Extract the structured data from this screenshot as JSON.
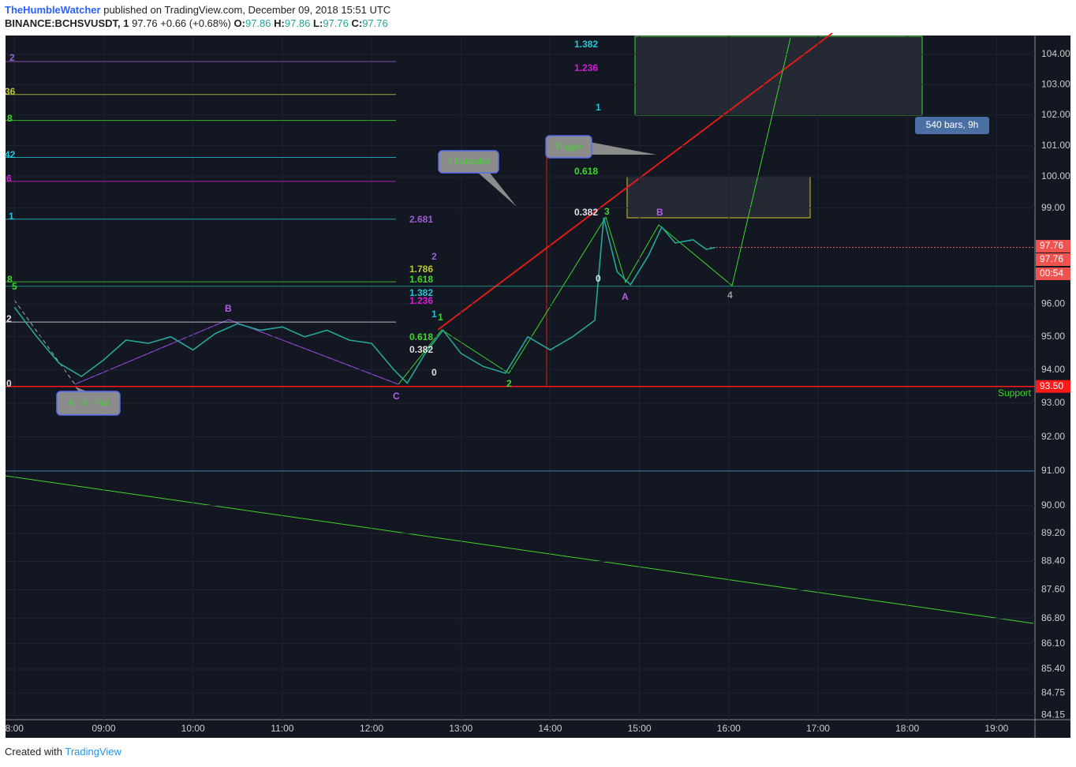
{
  "header": {
    "author": "TheHumbleWatcher",
    "published": "published on TradingView.com, December 09, 2018 15:51 UTC",
    "symbol": "BINANCE:BCHSVUSDT, 1",
    "last": "97.76",
    "change": "+0.66 (+0.68%)",
    "o_label": "O:",
    "o": "97.86",
    "h_label": "H:",
    "h": "97.86",
    "l_label": "L:",
    "l": "97.76",
    "c_label": "C:",
    "c": "97.76"
  },
  "footer": {
    "created": "Created with",
    "brand": "TradingView"
  },
  "chart_data": {
    "type": "line",
    "log_scale": true,
    "color": "#26a69a",
    "x": [
      8.0,
      8.25,
      8.5,
      8.75,
      9.0,
      9.25,
      9.5,
      9.75,
      10.0,
      10.25,
      10.5,
      10.75,
      11.0,
      11.25,
      11.5,
      11.75,
      12.0,
      12.25,
      12.4,
      12.6,
      12.8,
      13.0,
      13.25,
      13.5,
      13.75,
      14.0,
      14.25,
      14.5,
      14.6,
      14.75,
      14.9,
      15.1,
      15.25,
      15.4,
      15.6,
      15.75,
      15.85
    ],
    "values": [
      95.9,
      95.0,
      94.2,
      93.8,
      94.3,
      94.9,
      94.8,
      95.0,
      94.6,
      95.1,
      95.4,
      95.2,
      95.3,
      95.0,
      95.2,
      94.9,
      94.8,
      94.0,
      93.6,
      94.5,
      95.2,
      94.5,
      94.1,
      93.9,
      95.0,
      94.6,
      95.0,
      95.5,
      98.7,
      97.0,
      96.6,
      97.5,
      98.4,
      97.9,
      98.0,
      97.7,
      97.76
    ],
    "xlim": [
      7.9,
      19.43
    ],
    "xticks": [
      {
        "value": 8,
        "label": "8:00"
      },
      {
        "value": 9,
        "label": "09:00"
      },
      {
        "value": 10,
        "label": "10:00"
      },
      {
        "value": 11,
        "label": "11:00"
      },
      {
        "value": 12,
        "label": "12:00"
      },
      {
        "value": 13,
        "label": "13:00"
      },
      {
        "value": 14,
        "label": "14:00"
      },
      {
        "value": 15,
        "label": "15:00"
      },
      {
        "value": 16,
        "label": "16:00"
      },
      {
        "value": 17,
        "label": "17:00"
      },
      {
        "value": 18,
        "label": "18:00"
      },
      {
        "value": 19,
        "label": "19:00"
      }
    ],
    "ylim": [
      84.03,
      104.63
    ],
    "yticks": [
      {
        "value": 104,
        "label": "104.00"
      },
      {
        "value": 103,
        "label": "103.00"
      },
      {
        "value": 102,
        "label": "102.00"
      },
      {
        "value": 101,
        "label": "101.00"
      },
      {
        "value": 100,
        "label": "100.00"
      },
      {
        "value": 99,
        "label": "99.00"
      },
      {
        "value": 96,
        "label": "96.00"
      },
      {
        "value": 95,
        "label": "95.00"
      },
      {
        "value": 94,
        "label": "94.00"
      },
      {
        "value": 93,
        "label": "93.00"
      },
      {
        "value": 92,
        "label": "92.00"
      },
      {
        "value": 91,
        "label": "91.00"
      },
      {
        "value": 90,
        "label": "90.00"
      },
      {
        "value": 89.2,
        "label": "89.20"
      },
      {
        "value": 88.4,
        "label": "88.40"
      },
      {
        "value": 87.6,
        "label": "87.60"
      },
      {
        "value": 86.8,
        "label": "86.80"
      },
      {
        "value": 86.1,
        "label": "86.10"
      },
      {
        "value": 85.4,
        "label": "85.40"
      },
      {
        "value": 84.75,
        "label": "84.75"
      },
      {
        "value": 84.15,
        "label": "84.15"
      }
    ],
    "grid": true,
    "levels": [
      {
        "value": 103.76,
        "color": "#9b5ed4"
      },
      {
        "value": 102.67,
        "color": "#c0ca33"
      },
      {
        "value": 101.82,
        "color": "#3fd62b"
      },
      {
        "value": 100.62,
        "color": "#26c6da"
      },
      {
        "value": 99.85,
        "color": "#d81bd8"
      },
      {
        "value": 98.65,
        "color": "#26c6da"
      },
      {
        "value": 96.69,
        "color": "#3fd62b"
      },
      {
        "value": 95.45,
        "color": "#e0e0e0"
      },
      {
        "value": 96.55,
        "color": "#26a69a"
      },
      {
        "value": 91.0,
        "color": "#4a90c2"
      }
    ],
    "support": {
      "value": 93.5,
      "label": "93.50",
      "text": "Support",
      "color": "#ff1a1a"
    },
    "price_tags": [
      {
        "value": 97.76,
        "label": "97.76"
      },
      {
        "value": 97.55,
        "label": "97.76"
      },
      {
        "value": 97.2,
        "label": "00:54"
      }
    ],
    "range_info": "540 bars, 9h",
    "annotations": [
      {
        "text": "1.382",
        "color": "#26c6da"
      },
      {
        "text": "1.236",
        "color": "#d81bd8"
      },
      {
        "text": "1",
        "color": "#26c6da"
      },
      {
        "text": "0.618",
        "color": "#3fd62b"
      },
      {
        "text": "0.382",
        "color": "#e0e0e0"
      },
      {
        "text": "3",
        "color": "#3fd62b"
      },
      {
        "text": "B",
        "color": "#b45ee8"
      },
      {
        "text": "0",
        "color": "#e0e0e0"
      },
      {
        "text": "A",
        "color": "#b45ee8"
      },
      {
        "text": "4",
        "color": "#9e9e9e"
      },
      {
        "text": "2.681",
        "color": "#9b5ed4"
      },
      {
        "text": "2",
        "color": "#9b5ed4"
      },
      {
        "text": "1.786",
        "color": "#c0ca33"
      },
      {
        "text": "1.618",
        "color": "#3fd62b"
      },
      {
        "text": "1.382",
        "color": "#26c6da"
      },
      {
        "text": "1.236",
        "color": "#d81bd8"
      },
      {
        "text": "1",
        "color": "#26c6da"
      },
      {
        "text": "1",
        "color": "#3fd62b"
      },
      {
        "text": "0.618",
        "color": "#3fd62b"
      },
      {
        "text": "0.382",
        "color": "#e0e0e0"
      },
      {
        "text": "0",
        "color": "#e0e0e0"
      },
      {
        "text": "2",
        "color": "#3fd62b"
      },
      {
        "text": "C",
        "color": "#b45ee8"
      },
      {
        "text": "B",
        "color": "#b45ee8"
      },
      {
        "text": "5",
        "color": "#3fd62b"
      },
      {
        "text": "0",
        "color": "#e0e0e0"
      },
      {
        "text": "2",
        "color": "#9b5ed4"
      },
      {
        "text": "36",
        "color": "#c0ca33"
      },
      {
        "text": "8",
        "color": "#3fd62b"
      },
      {
        "text": "42",
        "color": "#26c6da"
      },
      {
        "text": "6",
        "color": "#d81bd8"
      },
      {
        "text": "1",
        "color": "#26c6da"
      },
      {
        "text": "8",
        "color": "#3fd62b"
      },
      {
        "text": "2",
        "color": "#e0e0e0"
      }
    ],
    "callouts": [
      "Trigger",
      "3 Extended",
      "A - 3 - Flat"
    ]
  }
}
